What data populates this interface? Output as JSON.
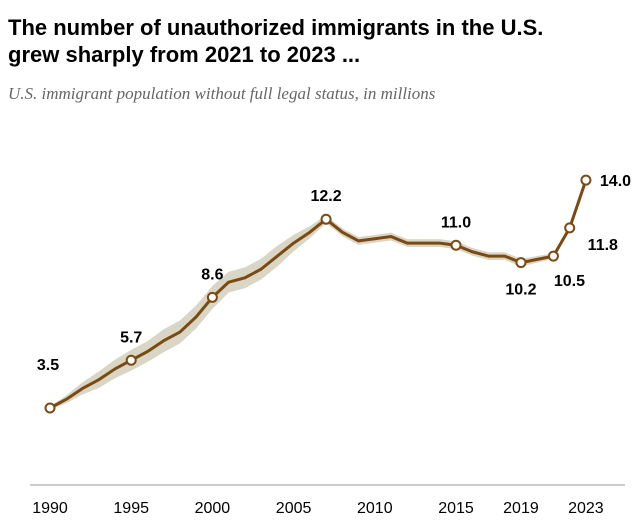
{
  "chart_data": {
    "type": "line",
    "title": "The number of unauthorized immigrants in the U.S. grew sharply from 2021 to 2023 ...",
    "title_lines": [
      "The number of unauthorized immigrants in the U.S.",
      "grew sharply from 2021 to 2023 ..."
    ],
    "subtitle": "U.S. immigrant population without full legal status, in millions",
    "xlabel": "",
    "ylabel": "",
    "xlim": [
      1990,
      2023
    ],
    "ylim": [
      0,
      14.5
    ],
    "grid": false,
    "x_ticks": [
      "1990",
      "1995",
      "2000",
      "2005",
      "2010",
      "2015",
      "2019",
      "2023"
    ],
    "colors": {
      "line": "#7a4a12",
      "band": "#dad6c6"
    },
    "series": [
      {
        "x": [
          1990,
          1991,
          1992,
          1993,
          1994,
          1995,
          1996,
          1997,
          1998,
          1999,
          2000,
          2001,
          2002,
          2003,
          2004,
          2005,
          2006,
          2007,
          2008,
          2009,
          2010,
          2011,
          2012,
          2013,
          2014,
          2015,
          2016,
          2017,
          2018,
          2019,
          2021,
          2022,
          2023
        ],
        "y": [
          3.5,
          3.9,
          4.4,
          4.8,
          5.3,
          5.7,
          6.1,
          6.6,
          7.0,
          7.7,
          8.6,
          9.3,
          9.5,
          9.9,
          10.5,
          11.1,
          11.6,
          12.2,
          11.6,
          11.2,
          11.3,
          11.4,
          11.1,
          11.1,
          11.1,
          11.0,
          10.7,
          10.5,
          10.5,
          10.2,
          10.5,
          11.8,
          14.0
        ],
        "range_halfwidth": [
          0,
          0.1,
          0.2,
          0.3,
          0.35,
          0.4,
          0.4,
          0.45,
          0.45,
          0.45,
          0.45,
          0.4,
          0.4,
          0.4,
          0.4,
          0.3,
          0.2,
          0.1,
          0.1,
          0.1,
          0.1,
          0.1,
          0.1,
          0.1,
          0.1,
          0.1,
          0.1,
          0.1,
          0.1,
          0.1,
          0.05,
          0.05,
          0.05
        ]
      }
    ],
    "labeled_points": [
      {
        "x": 1990,
        "y": 3.5,
        "label": "3.5",
        "pos": "above-left"
      },
      {
        "x": 1995,
        "y": 5.7,
        "label": "5.7",
        "pos": "above"
      },
      {
        "x": 2000,
        "y": 8.6,
        "label": "8.6",
        "pos": "above"
      },
      {
        "x": 2007,
        "y": 12.2,
        "label": "12.2",
        "pos": "above"
      },
      {
        "x": 2015,
        "y": 11.0,
        "label": "11.0",
        "pos": "above"
      },
      {
        "x": 2019,
        "y": 10.2,
        "label": "10.2",
        "pos": "below"
      },
      {
        "x": 2021,
        "y": 10.5,
        "label": "10.5",
        "pos": "below-right"
      },
      {
        "x": 2022,
        "y": 11.8,
        "label": "11.8",
        "pos": "right-below"
      },
      {
        "x": 2023,
        "y": 14.0,
        "label": "14.0",
        "pos": "right"
      }
    ]
  }
}
